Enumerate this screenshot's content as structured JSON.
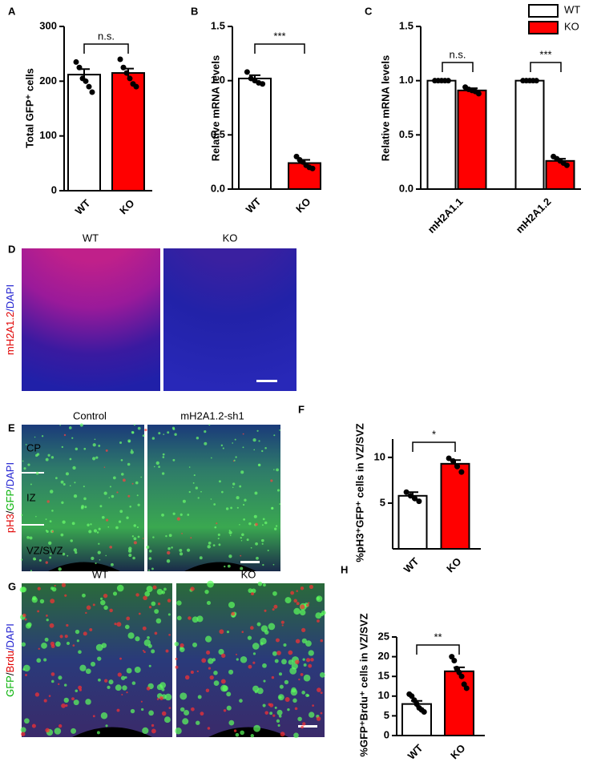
{
  "chart_data": [
    {
      "panel": "A",
      "type": "bar",
      "ylabel": "Total GFP⁺ cells",
      "categories": [
        "WT",
        "KO"
      ],
      "values": [
        212,
        215
      ],
      "errors": [
        10,
        8
      ],
      "points": [
        [
          235,
          225,
          205,
          200,
          190,
          180
        ],
        [
          240,
          225,
          215,
          205,
          195,
          190
        ]
      ],
      "colors": [
        "#ffffff",
        "#ff0000"
      ],
      "ylim": [
        0,
        300
      ],
      "yticks": [
        0,
        100,
        200,
        300
      ],
      "annotations": [
        "n.s."
      ]
    },
    {
      "panel": "B",
      "type": "bar",
      "ylabel": "Relative mRNA levels",
      "categories": [
        "WT",
        "KO"
      ],
      "values": [
        1.02,
        0.24
      ],
      "errors": [
        0.03,
        0.03
      ],
      "points": [
        [
          1.08,
          1.02,
          1.0,
          0.98,
          0.97
        ],
        [
          0.3,
          0.27,
          0.25,
          0.22,
          0.2,
          0.19
        ]
      ],
      "colors": [
        "#ffffff",
        "#ff0000"
      ],
      "ylim": [
        0,
        1.5
      ],
      "yticks": [
        {
          "value": 0,
          "label": "0.0"
        },
        0.5,
        {
          "value": 1,
          "label": "1.0"
        },
        1.5
      ],
      "annotations": [
        "***"
      ]
    },
    {
      "panel": "C",
      "type": "grouped-bar",
      "ylabel": "Relative mRNA levels",
      "categories": [
        "mH2A1.1",
        "mH2A1.2"
      ],
      "series": [
        {
          "name": "WT",
          "color": "#ffffff",
          "values": [
            1.0,
            1.0
          ],
          "errors": [
            0.005,
            0.005
          ],
          "points": [
            [
              1,
              1,
              1,
              1,
              1
            ],
            [
              1,
              1,
              1,
              1,
              1
            ]
          ]
        },
        {
          "name": "KO",
          "color": "#ff0000",
          "values": [
            0.91,
            0.26
          ],
          "errors": [
            0.02,
            0.02
          ],
          "points": [
            [
              0.94,
              0.92,
              0.91,
              0.9,
              0.88
            ],
            [
              0.3,
              0.28,
              0.26,
              0.24,
              0.22
            ]
          ]
        }
      ],
      "ylim": [
        0,
        1.5
      ],
      "yticks": [
        {
          "value": 0,
          "label": "0.0"
        },
        0.5,
        {
          "value": 1,
          "label": "1.0"
        },
        1.5
      ],
      "annotations": [
        "n.s.",
        "***"
      ],
      "legend": "top-right"
    },
    {
      "panel": "F",
      "type": "bar",
      "ylabel": "%pH3⁺GFP⁺ cells in VZ/SVZ",
      "categories": [
        "WT",
        "KO"
      ],
      "values": [
        5.8,
        9.3
      ],
      "errors": [
        0.4,
        0.4
      ],
      "points": [
        [
          6.2,
          5.8,
          5.5,
          5.2
        ],
        [
          9.9,
          9.6,
          9.0,
          8.4
        ]
      ],
      "colors": [
        "#ffffff",
        "#ff0000"
      ],
      "ylim": [
        0,
        12
      ],
      "yticks": [
        5,
        10
      ],
      "annotations": [
        "*"
      ]
    },
    {
      "panel": "H",
      "type": "bar",
      "ylabel": "%GFP⁺Brdu⁺ cells in VZ/SVZ",
      "categories": [
        "WT",
        "KO"
      ],
      "values": [
        8,
        16.3
      ],
      "errors": [
        0.8,
        1
      ],
      "points": [
        [
          10.5,
          10,
          9,
          8,
          7,
          6.5,
          6
        ],
        [
          20,
          19,
          17,
          16,
          15,
          13,
          12
        ]
      ],
      "colors": [
        "#ffffff",
        "#ff0000"
      ],
      "ylim": [
        0,
        25
      ],
      "yticks": [
        0,
        5,
        10,
        15,
        20,
        25
      ],
      "annotations": [
        "**"
      ]
    }
  ],
  "images": [
    {
      "panel": "D",
      "stain": [
        "mH2A1.2",
        "/DAPI"
      ],
      "titles": [
        "WT",
        "KO"
      ]
    },
    {
      "panel": "E",
      "stain": [
        "pH3",
        "/",
        "GFP",
        "/DAPI"
      ],
      "titles": [
        "Control",
        "mH2A1.2-sh1"
      ],
      "regions": [
        "CP",
        "IZ",
        "VZ/SVZ"
      ]
    },
    {
      "panel": "G",
      "stain": [
        "GFP",
        "/",
        "Brdu",
        "/DAPI"
      ],
      "titles": [
        "WT",
        "KO"
      ]
    }
  ]
}
